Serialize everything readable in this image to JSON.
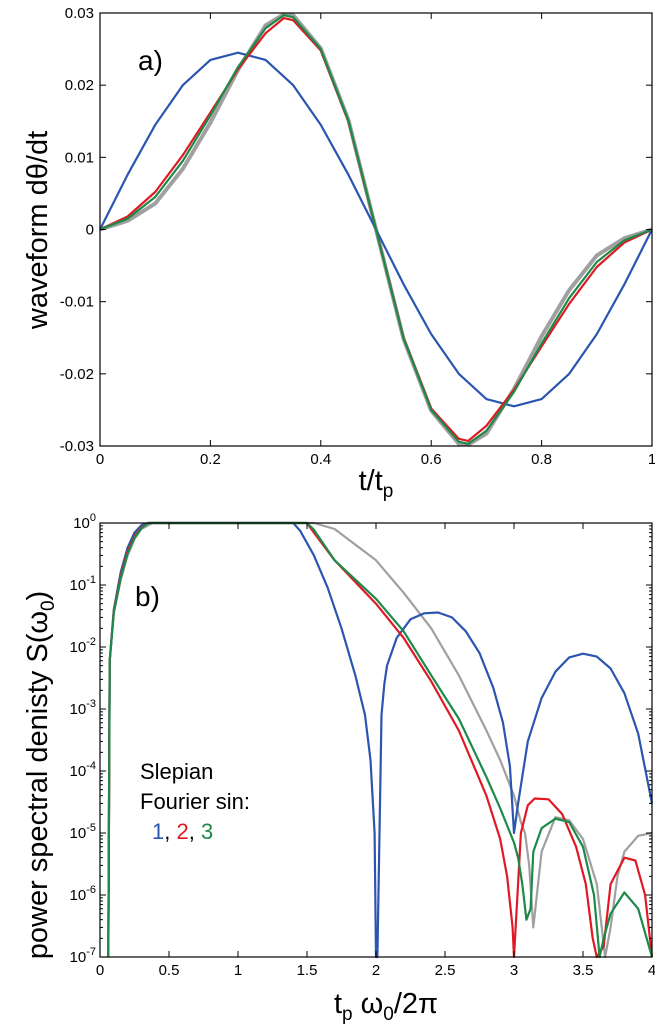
{
  "chart_data": [
    {
      "type": "line",
      "panel_label": "a)",
      "xlabel": "t/t",
      "xlabel_sub": "p",
      "ylabel": "waveform dθ/dt",
      "xlim": [
        0,
        1
      ],
      "ylim": [
        -0.03,
        0.03
      ],
      "xticks": [
        0,
        0.2,
        0.4,
        0.6,
        0.8,
        1
      ],
      "xtick_labels": [
        "0",
        "0.2",
        "0.4",
        "0.6",
        "0.8",
        "1"
      ],
      "yticks": [
        -0.03,
        -0.02,
        -0.01,
        0,
        0.01,
        0.02,
        0.03
      ],
      "ytick_labels": [
        "-0.03",
        "-0.02",
        "-0.01",
        "0",
        "0.01",
        "0.02",
        "0.03"
      ],
      "grid": false,
      "series": [
        {
          "color": "#a0a0a0",
          "x": [
            0,
            0.05,
            0.1,
            0.15,
            0.2,
            0.25,
            0.3,
            0.333,
            0.35,
            0.4,
            0.45,
            0.5,
            0.55,
            0.6,
            0.65,
            0.667,
            0.7,
            0.75,
            0.8,
            0.85,
            0.9,
            0.95,
            1
          ],
          "y": [
            0,
            0.0012,
            0.0036,
            0.0084,
            0.0148,
            0.0221,
            0.0283,
            0.0298,
            0.0297,
            0.0251,
            0.0152,
            0,
            -0.0152,
            -0.0251,
            -0.0297,
            -0.0298,
            -0.0283,
            -0.0221,
            -0.0148,
            -0.0084,
            -0.0036,
            -0.0012,
            0
          ]
        },
        {
          "color": "#2b55b0",
          "x": [
            0,
            0.05,
            0.1,
            0.15,
            0.2,
            0.25,
            0.3,
            0.35,
            0.4,
            0.45,
            0.5,
            0.55,
            0.6,
            0.65,
            0.7,
            0.75,
            0.8,
            0.85,
            0.9,
            0.95,
            1
          ],
          "y": [
            0,
            0.0076,
            0.0145,
            0.02,
            0.0235,
            0.0245,
            0.0235,
            0.02,
            0.0145,
            0.0076,
            0,
            -0.0076,
            -0.0145,
            -0.02,
            -0.0235,
            -0.0245,
            -0.0235,
            -0.02,
            -0.0145,
            -0.0076,
            0
          ]
        },
        {
          "color": "#e01a24",
          "x": [
            0,
            0.05,
            0.1,
            0.15,
            0.2,
            0.25,
            0.3,
            0.333,
            0.35,
            0.4,
            0.45,
            0.5,
            0.55,
            0.6,
            0.65,
            0.667,
            0.7,
            0.75,
            0.8,
            0.85,
            0.9,
            0.95,
            1
          ],
          "y": [
            0,
            0.0018,
            0.0052,
            0.0103,
            0.0162,
            0.0222,
            0.0272,
            0.0293,
            0.029,
            0.0248,
            0.015,
            0,
            -0.015,
            -0.0248,
            -0.029,
            -0.0293,
            -0.0272,
            -0.0222,
            -0.0162,
            -0.0103,
            -0.0052,
            -0.0018,
            0
          ]
        },
        {
          "color": "#1d8a4a",
          "x": [
            0,
            0.05,
            0.1,
            0.15,
            0.2,
            0.25,
            0.3,
            0.333,
            0.35,
            0.4,
            0.45,
            0.5,
            0.55,
            0.6,
            0.65,
            0.667,
            0.7,
            0.75,
            0.8,
            0.85,
            0.9,
            0.95,
            1
          ],
          "y": [
            0,
            0.0015,
            0.0045,
            0.0095,
            0.0158,
            0.0225,
            0.0279,
            0.0297,
            0.0294,
            0.025,
            0.0151,
            0,
            -0.0151,
            -0.025,
            -0.0294,
            -0.0297,
            -0.0279,
            -0.0225,
            -0.0158,
            -0.0095,
            -0.0045,
            -0.0015,
            0
          ]
        }
      ]
    },
    {
      "type": "line",
      "panel_label": "b)",
      "xlabel": "t",
      "xlabel_sub": "p",
      "xlabel_rest": " ω",
      "xlabel_sub2": "0",
      "xlabel_end": "/2π",
      "ylabel": "power spectral denisty  S(ω",
      "ylabel_sub": "0",
      "ylabel_end": ")",
      "xlim": [
        0,
        4
      ],
      "ylim": [
        1e-07,
        1
      ],
      "yscale": "log",
      "xticks": [
        0,
        0.5,
        1,
        1.5,
        2,
        2.5,
        3,
        3.5,
        4
      ],
      "xtick_labels": [
        "0",
        "0.5",
        "1",
        "1.5",
        "2",
        "2.5",
        "3",
        "3.5",
        "4"
      ],
      "yticks": [
        0,
        -1,
        -2,
        -3,
        -4,
        -5,
        -6,
        -7
      ],
      "ytick_base": "10",
      "ytick_exponents": [
        "0",
        "-1",
        "-2",
        "-3",
        "-4",
        "-5",
        "-6",
        "-7"
      ],
      "grid": false,
      "legend": {
        "title": "Slepian",
        "title_color": "#a0a0a0",
        "subtitle": "Fourier sin:",
        "subtitle_color": "#2b55b0",
        "entries": [
          {
            "label": "1",
            "color": "#2b55b0"
          },
          {
            "label": "2",
            "color": "#e01a24"
          },
          {
            "label": "3",
            "color": "#1d8a4a"
          }
        ],
        "separator": ", "
      },
      "series": [
        {
          "color": "#a0a0a0",
          "x": [
            0.06,
            0.07,
            0.1,
            0.15,
            0.2,
            0.25,
            0.3,
            0.38,
            0.6,
            1.0,
            1.5,
            1.55,
            1.7,
            2.0,
            2.2,
            2.4,
            2.6,
            2.8,
            2.9,
            3.0,
            3.05,
            3.08,
            3.11,
            3.14,
            3.2,
            3.3,
            3.4,
            3.5,
            3.6,
            3.66,
            3.7,
            3.75,
            3.8,
            3.9,
            4.0
          ],
          "y": [
            1e-07,
            0.006,
            0.035,
            0.12,
            0.3,
            0.55,
            0.8,
            1,
            1,
            1,
            1,
            1,
            0.8,
            0.25,
            0.075,
            0.02,
            0.0035,
            0.00045,
            0.00015,
            4e-05,
            1.5e-05,
            1e-05,
            3e-06,
            3e-07,
            5e-06,
            1.8e-05,
            1.6e-05,
            8e-06,
            1.5e-06,
            1e-07,
            3e-07,
            2e-06,
            5e-06,
            9e-06,
            1e-05
          ]
        },
        {
          "color": "#2b55b0",
          "x": [
            0.06,
            0.07,
            0.1,
            0.15,
            0.2,
            0.25,
            0.3,
            0.35,
            0.4,
            0.5,
            1.0,
            1.4,
            1.45,
            1.55,
            1.65,
            1.75,
            1.85,
            1.92,
            1.96,
            1.99,
            2.0,
            2.01,
            2.04,
            2.06,
            2.08,
            2.15,
            2.25,
            2.35,
            2.45,
            2.55,
            2.65,
            2.75,
            2.85,
            2.92,
            2.97,
            3.0,
            3.03,
            3.1,
            3.2,
            3.3,
            3.4,
            3.5,
            3.6,
            3.7,
            3.8,
            3.9,
            4.0
          ],
          "y": [
            1e-07,
            0.006,
            0.04,
            0.16,
            0.4,
            0.7,
            0.92,
            1,
            1,
            1,
            1,
            1,
            0.75,
            0.3,
            0.09,
            0.02,
            0.0035,
            0.0008,
            0.00015,
            1e-05,
            1e-07,
            1e-07,
            0.0008,
            0.0025,
            0.005,
            0.014,
            0.028,
            0.035,
            0.036,
            0.03,
            0.018,
            0.008,
            0.0022,
            0.0006,
            0.00012,
            1e-05,
            3e-05,
            0.0003,
            0.0015,
            0.004,
            0.0068,
            0.0078,
            0.007,
            0.0045,
            0.0018,
            0.0004,
            3e-05
          ]
        },
        {
          "color": "#e01a24",
          "x": [
            0.06,
            0.07,
            0.1,
            0.15,
            0.2,
            0.25,
            0.3,
            0.35,
            0.4,
            0.6,
            1.0,
            1.5,
            1.55,
            1.7,
            2.0,
            2.2,
            2.4,
            2.6,
            2.8,
            2.9,
            2.95,
            2.99,
            3.0,
            3.05,
            3.1,
            3.15,
            3.25,
            3.35,
            3.45,
            3.52,
            3.57,
            3.6,
            3.65,
            3.7,
            3.8,
            3.88,
            3.95,
            4.0
          ],
          "y": [
            1e-07,
            0.006,
            0.038,
            0.14,
            0.35,
            0.62,
            0.85,
            1,
            1,
            1,
            1,
            1,
            0.7,
            0.25,
            0.05,
            0.014,
            0.0028,
            0.00045,
            4e-05,
            8e-06,
            2e-06,
            3e-07,
            1e-07,
            1e-05,
            2.8e-05,
            3.6e-05,
            3.5e-05,
            2e-05,
            6e-06,
            1.5e-06,
            2e-07,
            1e-07,
            1.5e-07,
            1.5e-06,
            4e-06,
            3.6e-06,
            1e-06,
            1e-07
          ]
        },
        {
          "color": "#1d8a4a",
          "x": [
            0.06,
            0.07,
            0.1,
            0.15,
            0.2,
            0.25,
            0.3,
            0.35,
            0.4,
            0.6,
            1.0,
            1.5,
            1.55,
            1.7,
            2.0,
            2.2,
            2.4,
            2.6,
            2.8,
            2.9,
            3.0,
            3.03,
            3.06,
            3.09,
            3.12,
            3.14,
            3.2,
            3.3,
            3.4,
            3.5,
            3.58,
            3.62,
            3.65,
            3.7,
            3.8,
            3.9,
            4.0
          ],
          "y": [
            1e-07,
            0.006,
            0.036,
            0.13,
            0.32,
            0.58,
            0.82,
            1,
            1,
            1,
            1,
            1,
            0.78,
            0.25,
            0.06,
            0.018,
            0.0035,
            0.0007,
            8e-05,
            2.5e-05,
            7e-06,
            4e-06,
            1.5e-06,
            4e-07,
            6e-07,
            5e-06,
            1.2e-05,
            1.7e-05,
            1.5e-05,
            6e-06,
            1e-06,
            1e-07,
            2e-07,
            5e-07,
            1.1e-06,
            6e-07,
            1e-07
          ]
        }
      ]
    }
  ]
}
